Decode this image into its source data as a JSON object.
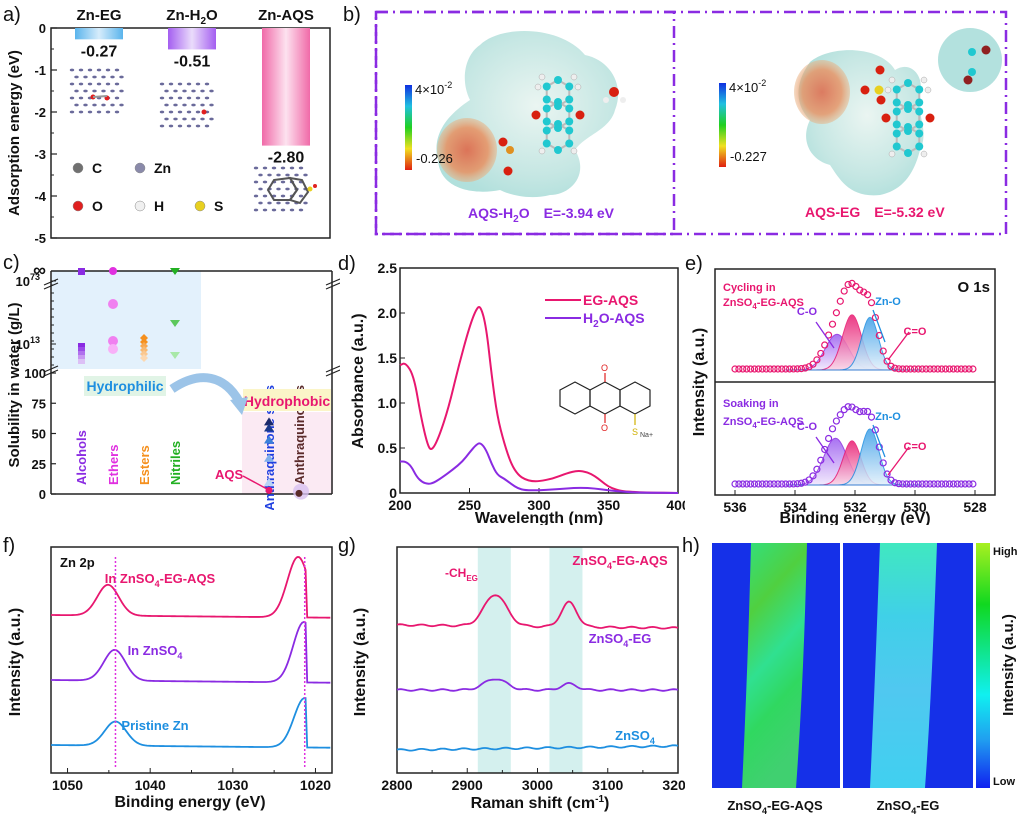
{
  "figure": {
    "panel_labels": [
      "a)",
      "b)",
      "c)",
      "d)",
      "e)",
      "f)",
      "g)",
      "h)"
    ]
  },
  "colors": {
    "pink": "#e8176f",
    "purple": "#8a2be2",
    "blue": "#1e8fe0",
    "green": "#22b022",
    "orange": "#f5901e",
    "brown": "#5a2a2a",
    "navy": "#2040c0"
  },
  "chart_data": [
    {
      "id": "a",
      "type": "bar",
      "title": "",
      "ylabel": "Adsorption energy (eV)",
      "xlabel": "",
      "ylim": [
        -5,
        0
      ],
      "yticks": [
        "0",
        "-1",
        "-2",
        "-3",
        "-4",
        "-5"
      ],
      "categories": [
        "Zn-EG",
        "Zn-H2O",
        "Zn-AQS"
      ],
      "category_labels": [
        {
          "main": "Zn-EG",
          "sub": "",
          "tail": ""
        },
        {
          "main": "Zn-H",
          "sub": "2",
          "tail": "O"
        },
        {
          "main": "Zn-AQS",
          "sub": "",
          "tail": ""
        }
      ],
      "values": [
        -0.27,
        -0.51,
        -2.8
      ],
      "value_labels": [
        "-0.27",
        "-0.51",
        "-2.80"
      ],
      "bar_colors": [
        "#5ab4ec",
        "#a45ef0",
        "#f06aa8"
      ],
      "legend": [
        {
          "symbol": "C",
          "color": "#707070"
        },
        {
          "symbol": "Zn",
          "color": "#8a8aaa"
        },
        {
          "symbol": "O",
          "color": "#e02020"
        },
        {
          "symbol": "H",
          "color": "#f0f0f0"
        },
        {
          "symbol": "S",
          "color": "#e8d020"
        }
      ]
    },
    {
      "id": "b",
      "type": "other",
      "title": "Electrostatic potential maps",
      "items": [
        {
          "name": "AQS-H2O",
          "name_main": "AQS-H",
          "name_sub": "2",
          "name_tail": "O",
          "energy": "E=-3.94 eV",
          "color": "#8a2be2",
          "scale_max": "4×10",
          "scale_max_exp": "-2",
          "scale_min": "-0.226"
        },
        {
          "name": "AQS-EG",
          "name_main": "AQS-EG",
          "name_sub": "",
          "name_tail": "",
          "energy": "E=-5.32 eV",
          "color": "#e8176f",
          "scale_max": "4×10",
          "scale_max_exp": "-2",
          "scale_min": "-0.227"
        }
      ]
    },
    {
      "id": "c",
      "type": "scatter",
      "ylabel": "Solubility in water (g/L)",
      "yticks_lower": [
        "0",
        "25",
        "50",
        "75",
        "100"
      ],
      "yticks_upper": [
        "10^13",
        "10^73",
        "∞"
      ],
      "ylim_lower": [
        0,
        100
      ],
      "categories": [
        "Alcohols",
        "Ethers",
        "Esters",
        "Nitriles",
        "Anthraquinone salts",
        "Anthraquinones"
      ],
      "category_colors": [
        "#8a2be2",
        "#e030e0",
        "#f5901e",
        "#22b022",
        "#2040e0",
        "#5a2a2a"
      ],
      "regions": {
        "hydrophilic": "Hydrophilic",
        "hydrophobic": "Hydrophobic"
      },
      "annotation": "AQS",
      "series": [
        {
          "name": "Alcohols",
          "marker": "square",
          "upper_points": [
            "∞",
            "10^13",
            "<10^13",
            "<10^13",
            "<10^13",
            "<10^13"
          ]
        },
        {
          "name": "Ethers",
          "marker": "circle",
          "upper_points": [
            "∞",
            "~10^53",
            "~10^15",
            "~10^12"
          ]
        },
        {
          "name": "Esters",
          "marker": "diamond",
          "upper_points": [
            "~10^15",
            "~10^14",
            "~10^13",
            "~10^12",
            "~10^11",
            "~10^10"
          ]
        },
        {
          "name": "Nitriles",
          "marker": "triangle-down",
          "upper_points": [
            "∞",
            "~10^33",
            "~10^7"
          ]
        },
        {
          "name": "Anthraquinone salts",
          "marker": "triangle-up",
          "lower_values": [
            60,
            55,
            45,
            30,
            10,
            3
          ]
        },
        {
          "name": "Anthraquinones",
          "marker": "circle",
          "lower_values": [
            0.5
          ]
        }
      ]
    },
    {
      "id": "d",
      "type": "line",
      "xlabel": "Wavelength (nm)",
      "ylabel": "Absorbance (a.u.)",
      "xlim": [
        200,
        400
      ],
      "ylim": [
        0,
        2.5
      ],
      "xticks": [
        200,
        250,
        300,
        350,
        400
      ],
      "yticks": [
        0,
        0.5,
        1.0,
        1.5,
        2.0,
        2.5
      ],
      "ytick_labels": [
        "0",
        "0.5",
        "1.0",
        "1.5",
        "2.0",
        "2.5"
      ],
      "series": [
        {
          "name": "EG-AQS",
          "label_main": "EG-AQS",
          "label_sub": "",
          "label_tail": "",
          "color": "#e8176f",
          "x": [
            200,
            204,
            210,
            215,
            220,
            223,
            228,
            235,
            242,
            250,
            255,
            258,
            262,
            266,
            270,
            275,
            280,
            285,
            290,
            295,
            300,
            310,
            320,
            328,
            335,
            340,
            345,
            350,
            355,
            360,
            370,
            380,
            400
          ],
          "y": [
            1.42,
            1.45,
            1.3,
            0.85,
            0.52,
            0.47,
            0.62,
            0.95,
            1.4,
            1.85,
            2.05,
            2.08,
            1.85,
            1.3,
            0.85,
            0.55,
            0.32,
            0.2,
            0.15,
            0.13,
            0.13,
            0.16,
            0.22,
            0.25,
            0.23,
            0.19,
            0.13,
            0.07,
            0.04,
            0.02,
            0.01,
            0.005,
            0.0
          ]
        },
        {
          "name": "H2O-AQS",
          "label_main": "H",
          "label_sub": "2",
          "label_tail": "O-AQS",
          "color": "#8a2be2",
          "x": [
            200,
            204,
            208,
            212,
            216,
            220,
            224,
            230,
            238,
            245,
            250,
            255,
            258,
            262,
            266,
            270,
            275,
            280,
            285,
            290,
            300,
            310,
            320,
            330,
            340,
            350,
            360,
            370,
            400
          ],
          "y": [
            0.35,
            0.35,
            0.3,
            0.18,
            0.12,
            0.1,
            0.11,
            0.17,
            0.26,
            0.35,
            0.45,
            0.54,
            0.56,
            0.48,
            0.32,
            0.2,
            0.16,
            0.1,
            0.05,
            0.03,
            0.03,
            0.04,
            0.05,
            0.06,
            0.05,
            0.03,
            0.015,
            0.005,
            0.0
          ]
        }
      ]
    },
    {
      "id": "e",
      "type": "line",
      "title": "O 1s",
      "xlabel": "Binding energy (eV)",
      "ylabel": "Intensity (a.u.)",
      "xlim": [
        536,
        528
      ],
      "xticks": [
        536,
        534,
        532,
        530,
        528
      ],
      "panels": [
        {
          "label_line1": "Cycling in",
          "label_line2_main": "ZnSO",
          "label_line2_sub": "4",
          "label_line2_tail": "-EG-AQS",
          "color": "#e8176f",
          "peaks": [
            {
              "name": "C-O",
              "center": 532.6,
              "height": 0.42,
              "width": 0.55,
              "color": "#8a2be2"
            },
            {
              "name": "C=O",
              "center": 532.1,
              "height": 0.65,
              "width": 0.45,
              "color": "#e8176f"
            },
            {
              "name": "Zn-O",
              "center": 531.5,
              "height": 0.62,
              "width": 0.4,
              "color": "#1e8fe0"
            }
          ]
        },
        {
          "label_line1": "Soaking in",
          "label_line2_main": "ZnSO",
          "label_line2_sub": "4",
          "label_line2_tail": "-EG-AQS",
          "color": "#8a2be2",
          "peaks": [
            {
              "name": "C-O",
              "center": 532.65,
              "height": 0.55,
              "width": 0.55,
              "color": "#8a2be2"
            },
            {
              "name": "C=O",
              "center": 532.1,
              "height": 0.52,
              "width": 0.42,
              "color": "#e8176f"
            },
            {
              "name": "Zn-O",
              "center": 531.5,
              "height": 0.66,
              "width": 0.42,
              "color": "#1e8fe0"
            }
          ]
        }
      ]
    },
    {
      "id": "f",
      "type": "line",
      "title": "Zn 2p",
      "xlabel": "Binding energy (eV)",
      "ylabel": "Intensity (a.u.)",
      "xlim": [
        1052,
        1018
      ],
      "xticks": [
        1050,
        1040,
        1030,
        1020
      ],
      "reference_lines": [
        1044.2,
        1021.3
      ],
      "series": [
        {
          "name": "In ZnSO4-EG-AQS",
          "label_main": "In ZnSO",
          "label_sub": "4",
          "label_tail": "-EG-AQS",
          "color": "#e8176f",
          "offset": 2.0,
          "peaks": [
            {
              "center": 1045.1,
              "height": 0.28
            },
            {
              "center": 1022.1,
              "height": 0.55
            }
          ]
        },
        {
          "name": "In ZnSO4",
          "label_main": "In ZnSO",
          "label_sub": "4",
          "label_tail": "",
          "color": "#8a2be2",
          "offset": 1.0,
          "peaks": [
            {
              "center": 1044.3,
              "height": 0.28
            },
            {
              "center": 1021.4,
              "height": 0.55
            }
          ]
        },
        {
          "name": "Pristine Zn",
          "label_main": "Pristine Zn",
          "label_sub": "",
          "label_tail": "",
          "color": "#1e8fe0",
          "offset": 0.0,
          "peaks": [
            {
              "center": 1044.2,
              "height": 0.22
            },
            {
              "center": 1021.3,
              "height": 0.45
            }
          ]
        }
      ]
    },
    {
      "id": "g",
      "type": "line",
      "xlabel": "Raman shift (cm-1)",
      "xlabel_main": "Raman shift (cm",
      "xlabel_sup": "-1",
      "xlabel_tail": ")",
      "ylabel": "Intensity (a.u.)",
      "xlim": [
        2800,
        3200
      ],
      "xticks": [
        2800,
        2900,
        3000,
        3100,
        3200
      ],
      "highlight_bands": [
        [
          2915,
          2962
        ],
        [
          3017,
          3064
        ]
      ],
      "annotation": {
        "main": "-CH",
        "sub": "EG"
      },
      "series": [
        {
          "name": "ZnSO4-EG-AQS",
          "label_main": "ZnSO",
          "label_sub": "4",
          "label_tail": "-EG-AQS",
          "color": "#e8176f",
          "offset": 2.0,
          "peaks": [
            {
              "center": 2940,
              "height": 0.45,
              "width": 16
            },
            {
              "center": 3045,
              "height": 0.35,
              "width": 11
            }
          ],
          "baseline_slope": -0.15
        },
        {
          "name": "ZnSO4-EG",
          "label_main": "ZnSO",
          "label_sub": "4",
          "label_tail": "-EG",
          "color": "#8a2be2",
          "offset": 1.0,
          "peaks": [
            {
              "center": 2940,
              "height": 0.16,
              "width": 16
            },
            {
              "center": 3045,
              "height": 0.09,
              "width": 11
            }
          ],
          "baseline_slope": 0.0
        },
        {
          "name": "ZnSO4",
          "label_main": "ZnSO",
          "label_sub": "4",
          "label_tail": "",
          "color": "#1e8fe0",
          "offset": 0.0,
          "peaks": [],
          "baseline_slope": 0.2
        }
      ]
    },
    {
      "id": "h",
      "type": "heatmap",
      "colorbar_label": "Intensity (a.u.)",
      "colorbar_high": "High",
      "colorbar_low": "Low",
      "maps": [
        {
          "name": "ZnSO4-EG-AQS",
          "label_main": "ZnSO",
          "label_sub": "4",
          "label_tail": "-EG-AQS",
          "band_intensity": "high"
        },
        {
          "name": "ZnSO4-EG",
          "label_main": "ZnSO",
          "label_sub": "4",
          "label_tail": "-EG",
          "band_intensity": "medium"
        }
      ]
    }
  ]
}
